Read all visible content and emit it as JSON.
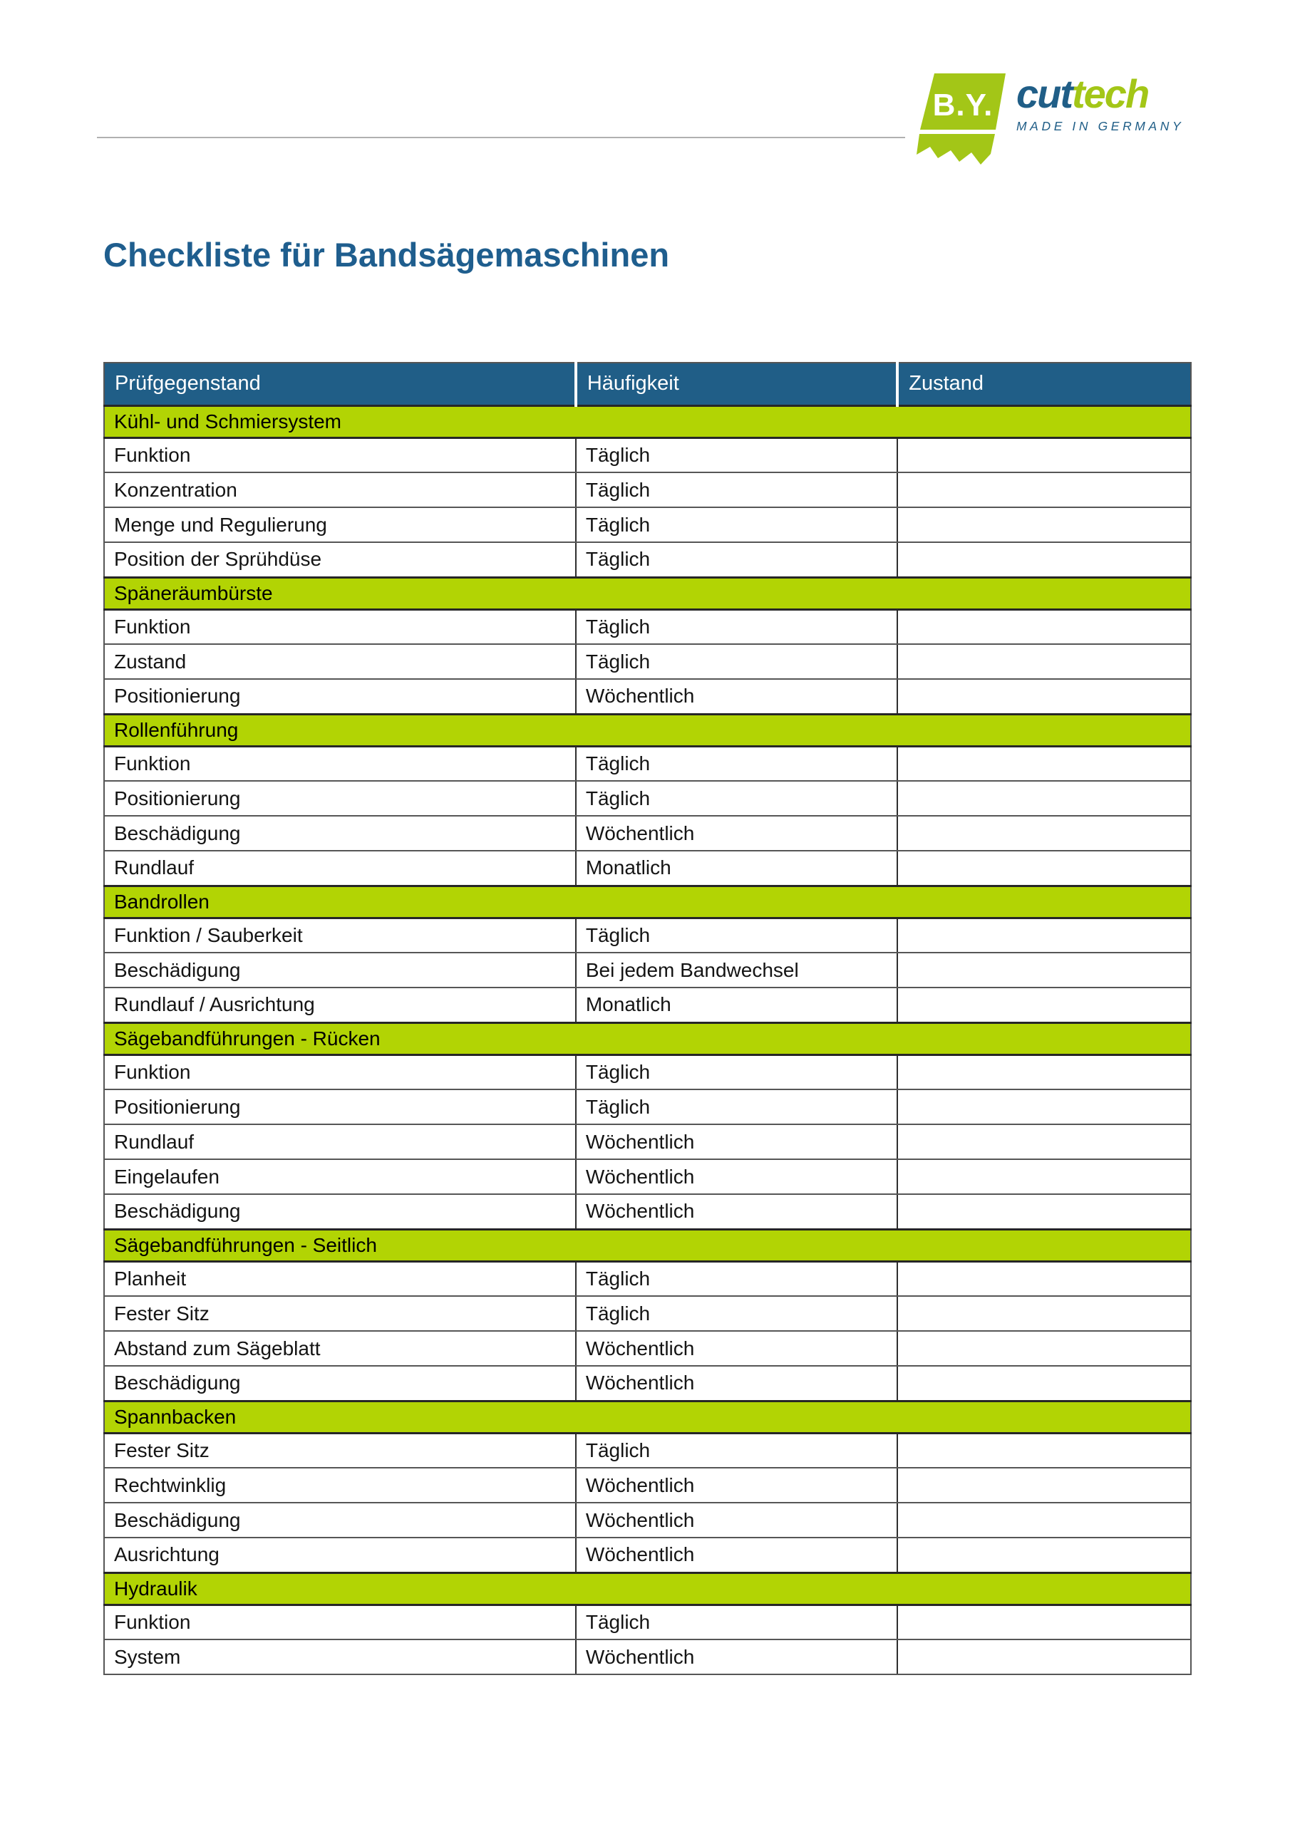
{
  "colors": {
    "header_blue": "#205e87",
    "title_blue": "#1f5e8e",
    "section_green": "#b2d404",
    "logo_green": "#a3c617",
    "rule_gray": "#b0b0b0"
  },
  "logo": {
    "mark_text": "B.Y.",
    "brand_part1": "cut",
    "brand_part2": "tech",
    "tagline": "MADE IN GERMANY"
  },
  "title": "Checkliste für Bandsägemaschinen",
  "table": {
    "columns": [
      "Prüfgegenstand",
      "Häufigkeit",
      "Zustand"
    ],
    "sections": [
      {
        "name": "Kühl- und Schmiersystem",
        "rows": [
          {
            "item": "Funktion",
            "frequency": "Täglich",
            "status": ""
          },
          {
            "item": "Konzentration",
            "frequency": "Täglich",
            "status": ""
          },
          {
            "item": "Menge und Regulierung",
            "frequency": "Täglich",
            "status": ""
          },
          {
            "item": "Position der Sprühdüse",
            "frequency": "Täglich",
            "status": ""
          }
        ]
      },
      {
        "name": "Späneräumbürste",
        "rows": [
          {
            "item": "Funktion",
            "frequency": "Täglich",
            "status": ""
          },
          {
            "item": "Zustand",
            "frequency": "Täglich",
            "status": ""
          },
          {
            "item": "Positionierung",
            "frequency": "Wöchentlich",
            "status": ""
          }
        ]
      },
      {
        "name": "Rollenführung",
        "rows": [
          {
            "item": "Funktion",
            "frequency": "Täglich",
            "status": ""
          },
          {
            "item": "Positionierung",
            "frequency": "Täglich",
            "status": ""
          },
          {
            "item": "Beschädigung",
            "frequency": "Wöchentlich",
            "status": ""
          },
          {
            "item": "Rundlauf",
            "frequency": "Monatlich",
            "status": ""
          }
        ]
      },
      {
        "name": "Bandrollen",
        "rows": [
          {
            "item": "Funktion / Sauberkeit",
            "frequency": "Täglich",
            "status": ""
          },
          {
            "item": "Beschädigung",
            "frequency": "Bei jedem Bandwechsel",
            "status": ""
          },
          {
            "item": "Rundlauf / Ausrichtung",
            "frequency": "Monatlich",
            "status": ""
          }
        ]
      },
      {
        "name": "Sägebandführungen - Rücken",
        "rows": [
          {
            "item": "Funktion",
            "frequency": "Täglich",
            "status": ""
          },
          {
            "item": "Positionierung",
            "frequency": "Täglich",
            "status": ""
          },
          {
            "item": "Rundlauf",
            "frequency": "Wöchentlich",
            "status": ""
          },
          {
            "item": "Eingelaufen",
            "frequency": "Wöchentlich",
            "status": ""
          },
          {
            "item": "Beschädigung",
            "frequency": "Wöchentlich",
            "status": ""
          }
        ]
      },
      {
        "name": "Sägebandführungen - Seitlich",
        "rows": [
          {
            "item": "Planheit",
            "frequency": "Täglich",
            "status": ""
          },
          {
            "item": "Fester Sitz",
            "frequency": "Täglich",
            "status": ""
          },
          {
            "item": "Abstand zum Sägeblatt",
            "frequency": "Wöchentlich",
            "status": ""
          },
          {
            "item": "Beschädigung",
            "frequency": "Wöchentlich",
            "status": ""
          }
        ]
      },
      {
        "name": "Spannbacken",
        "rows": [
          {
            "item": "Fester Sitz",
            "frequency": "Täglich",
            "status": ""
          },
          {
            "item": "Rechtwinklig",
            "frequency": "Wöchentlich",
            "status": ""
          },
          {
            "item": "Beschädigung",
            "frequency": "Wöchentlich",
            "status": ""
          },
          {
            "item": "Ausrichtung",
            "frequency": "Wöchentlich",
            "status": ""
          }
        ]
      },
      {
        "name": "Hydraulik",
        "rows": [
          {
            "item": "Funktion",
            "frequency": "Täglich",
            "status": ""
          },
          {
            "item": "System",
            "frequency": "Wöchentlich",
            "status": ""
          }
        ]
      }
    ]
  }
}
